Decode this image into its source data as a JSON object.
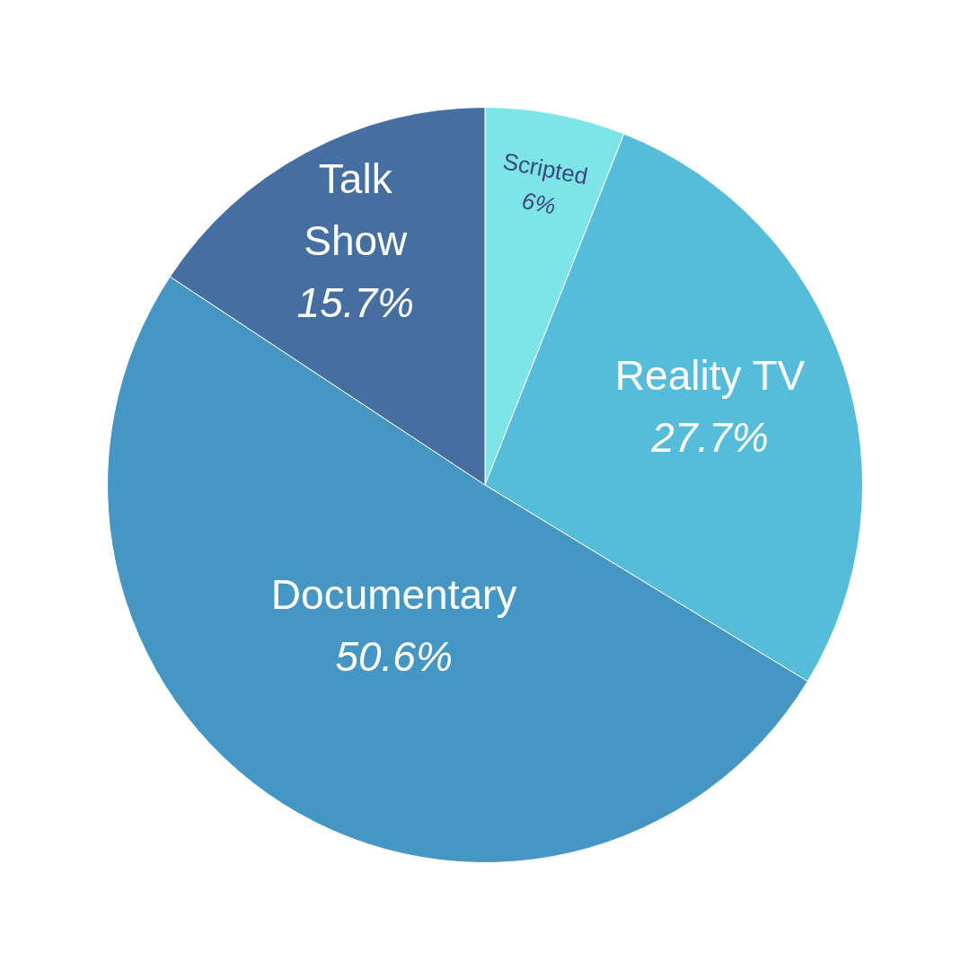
{
  "chart_data": {
    "type": "pie",
    "categories": [
      "Scripted",
      "Reality TV",
      "Documentary",
      "Talk Show"
    ],
    "values": [
      6,
      27.7,
      50.6,
      15.7
    ],
    "colors": [
      "#7de5e8",
      "#55bdd9",
      "#4596c3",
      "#456fa0"
    ],
    "value_labels": [
      "6%",
      "27.7%",
      "50.6%",
      "15.7%"
    ],
    "legend": false
  }
}
